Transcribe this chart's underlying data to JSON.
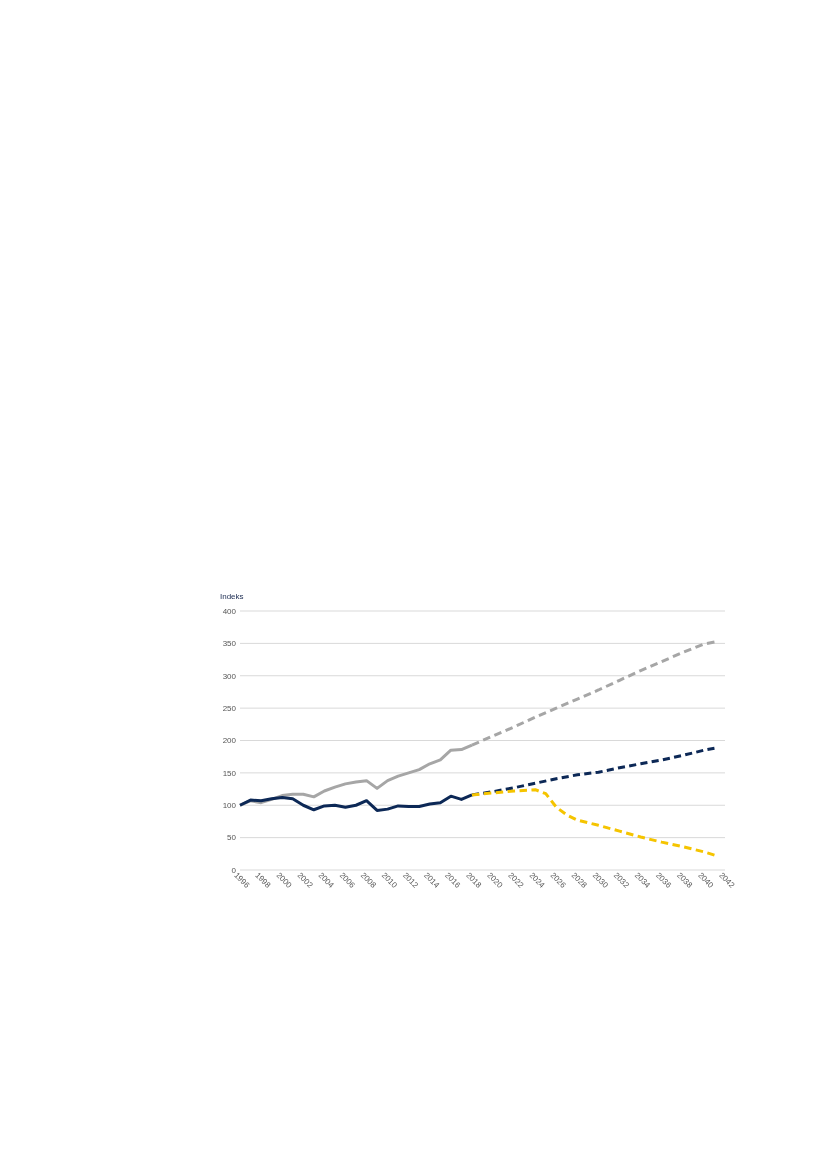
{
  "chart_data": {
    "type": "line",
    "ylabel": "Indeks",
    "xlim": [
      1996,
      2042
    ],
    "xticks": [
      1996,
      1998,
      2000,
      2002,
      2004,
      2006,
      2008,
      2010,
      2012,
      2014,
      2016,
      2018,
      2020,
      2022,
      2024,
      2026,
      2028,
      2030,
      2032,
      2034,
      2036,
      2038,
      2040,
      2042
    ],
    "ylim": [
      0,
      400
    ],
    "yticks": [
      0,
      50,
      100,
      150,
      200,
      250,
      300,
      350,
      400
    ],
    "grid": "y",
    "series": [
      {
        "color": "#a6a6a6",
        "line_style": "solid",
        "x": [
          1996,
          1997,
          1998,
          1999,
          2000,
          2001,
          2002,
          2003,
          2004,
          2005,
          2006,
          2007,
          2008,
          2009,
          2010,
          2011,
          2012,
          2013,
          2014,
          2015,
          2016,
          2017,
          2018
        ],
        "values": [
          100,
          107,
          104,
          109,
          115,
          117,
          117,
          113,
          122,
          128,
          133,
          136,
          138,
          126,
          138,
          145,
          150,
          155,
          164,
          170,
          185,
          186,
          193
        ]
      },
      {
        "color": "#0c2856",
        "line_style": "solid",
        "x": [
          1996,
          1997,
          1998,
          1999,
          2000,
          2001,
          2002,
          2003,
          2004,
          2005,
          2006,
          2007,
          2008,
          2009,
          2010,
          2011,
          2012,
          2013,
          2014,
          2015,
          2016,
          2017,
          2018
        ],
        "values": [
          100,
          108,
          107,
          110,
          112,
          110,
          100,
          93,
          99,
          100,
          97,
          100,
          107,
          92,
          94,
          99,
          98,
          98,
          102,
          104,
          114,
          109,
          116
        ]
      },
      {
        "color": "#a6a6a6",
        "line_style": "dashed",
        "x": [
          2018,
          2020,
          2022,
          2024,
          2026,
          2028,
          2030,
          2032,
          2034,
          2036,
          2038,
          2040,
          2041
        ],
        "values": [
          193,
          207,
          221,
          236,
          250,
          264,
          278,
          293,
          308,
          322,
          336,
          349,
          352
        ]
      },
      {
        "color": "#0c2856",
        "line_style": "dashed",
        "x": [
          2018,
          2020,
          2022,
          2024,
          2026,
          2028,
          2030,
          2032,
          2034,
          2036,
          2038,
          2040,
          2041
        ],
        "values": [
          116,
          121,
          127,
          134,
          141,
          147,
          151,
          158,
          164,
          170,
          177,
          185,
          188
        ]
      },
      {
        "color": "#f5c400",
        "line_style": "dashed",
        "x": [
          2018,
          2020,
          2022,
          2024,
          2025,
          2026,
          2027,
          2028,
          2030,
          2032,
          2034,
          2036,
          2038,
          2040,
          2041
        ],
        "values": [
          116,
          119,
          122,
          124,
          118,
          97,
          85,
          77,
          69,
          60,
          51,
          43,
          36,
          28,
          23
        ]
      }
    ]
  }
}
